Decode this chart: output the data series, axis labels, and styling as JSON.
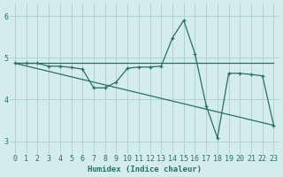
{
  "line1_x": [
    0,
    1,
    2,
    3,
    4,
    5,
    6,
    7,
    8,
    9,
    10,
    11,
    12,
    13,
    14,
    15,
    16,
    17,
    18,
    19,
    20,
    21,
    22,
    23
  ],
  "line1_y": [
    4.87,
    4.87,
    4.87,
    4.87,
    4.87,
    4.87,
    4.87,
    4.87,
    4.87,
    4.87,
    4.87,
    4.87,
    4.87,
    4.87,
    4.87,
    4.87,
    4.87,
    4.87,
    4.87,
    4.87,
    4.87,
    4.87,
    4.87,
    4.87
  ],
  "line2_x": [
    0,
    1,
    2,
    3,
    4,
    5,
    6,
    7,
    8,
    9,
    10,
    11,
    12,
    13,
    14,
    15,
    16,
    17,
    18,
    19,
    20,
    21,
    22,
    23
  ],
  "line2_y": [
    4.87,
    4.87,
    4.87,
    4.8,
    4.8,
    4.77,
    4.73,
    4.28,
    4.28,
    4.42,
    4.75,
    4.78,
    4.78,
    4.8,
    5.48,
    5.9,
    5.1,
    3.85,
    3.08,
    4.63,
    4.63,
    4.6,
    4.57,
    3.38
  ],
  "line3_x_start": 0,
  "line3_x_end": 23,
  "line3_y_start": 4.87,
  "line3_y_end": 3.38,
  "color": "#2a7060",
  "bg_color": "#d4ecec",
  "grid_color": "#afd4d4",
  "xlabel": "Humidex (Indice chaleur)",
  "xlim": [
    -0.5,
    23.5
  ],
  "ylim": [
    2.7,
    6.3
  ],
  "yticks": [
    3,
    4,
    5,
    6
  ],
  "xticks": [
    0,
    1,
    2,
    3,
    4,
    5,
    6,
    7,
    8,
    9,
    10,
    11,
    12,
    13,
    14,
    15,
    16,
    17,
    18,
    19,
    20,
    21,
    22,
    23
  ]
}
